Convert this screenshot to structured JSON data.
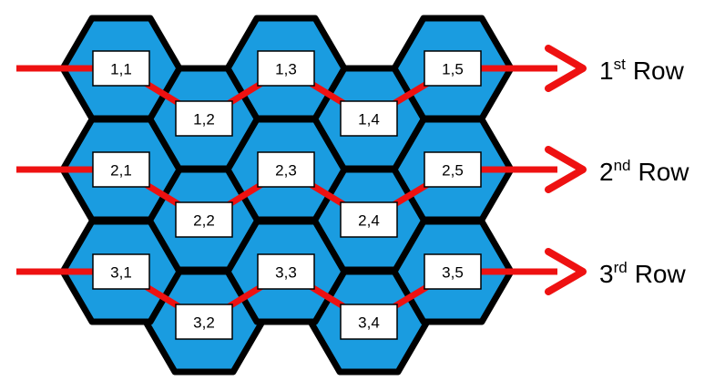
{
  "colors": {
    "hex_fill": "#1a9ce0",
    "hex_stroke": "#000000",
    "path": "#ee1111",
    "label_box": "#ffffff"
  },
  "rows": [
    {
      "label": {
        "num": "1",
        "sup": "st",
        "word": "Row"
      },
      "cells": [
        "1,1",
        "1,2",
        "1,3",
        "1,4",
        "1,5"
      ]
    },
    {
      "label": {
        "num": "2",
        "sup": "nd",
        "word": "Row"
      },
      "cells": [
        "2,1",
        "2,2",
        "2,3",
        "2,4",
        "2,5"
      ]
    },
    {
      "label": {
        "num": "3",
        "sup": "rd",
        "word": "Row"
      },
      "cells": [
        "3,1",
        "3,2",
        "3,3",
        "3,4",
        "3,5"
      ]
    }
  ]
}
